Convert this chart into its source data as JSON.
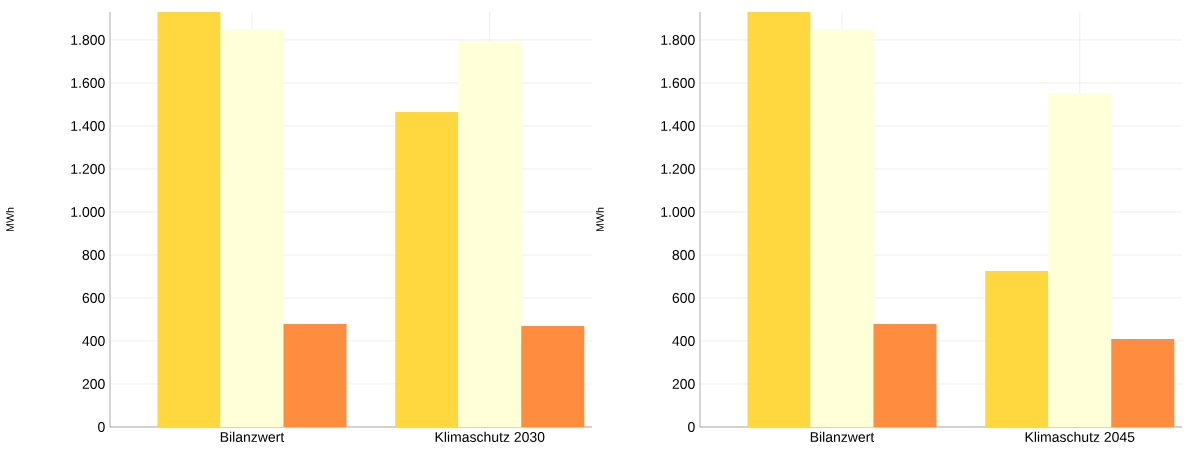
{
  "chart_data": [
    {
      "type": "bar",
      "ylabel": "MWh",
      "categories": [
        "Bilanzwert",
        "Klimaschutz 2030"
      ],
      "ylim": [
        0,
        1930
      ],
      "yticks": [
        0,
        200,
        400,
        600,
        800,
        {
          "value": 1000,
          "label": "1.000"
        },
        {
          "value": 1200,
          "label": "1.200"
        },
        {
          "value": 1400,
          "label": "1.400"
        },
        {
          "value": 1600,
          "label": "1.600"
        },
        {
          "value": 1800,
          "label": "1.800"
        }
      ],
      "grid": true,
      "series": [
        {
          "color": "#ffd83f",
          "values": [
            1930,
            1465
          ]
        },
        {
          "color": "#ffffd8",
          "values": [
            1851,
            1795
          ]
        },
        {
          "color": "#ff8c3f",
          "values": [
            479,
            470
          ]
        }
      ]
    },
    {
      "type": "bar",
      "ylabel": "MWh",
      "categories": [
        "Bilanzwert",
        "Klimaschutz 2045"
      ],
      "ylim": [
        0,
        1930
      ],
      "yticks": [
        0,
        200,
        400,
        600,
        800,
        {
          "value": 1000,
          "label": "1.000"
        },
        {
          "value": 1200,
          "label": "1.200"
        },
        {
          "value": 1400,
          "label": "1.400"
        },
        {
          "value": 1600,
          "label": "1.600"
        },
        {
          "value": 1800,
          "label": "1.800"
        }
      ],
      "grid": true,
      "series": [
        {
          "color": "#ffd83f",
          "values": [
            1930,
            726
          ]
        },
        {
          "color": "#ffffd8",
          "values": [
            1851,
            1553
          ]
        },
        {
          "color": "#ff8c3f",
          "values": [
            479,
            409
          ]
        }
      ]
    }
  ]
}
